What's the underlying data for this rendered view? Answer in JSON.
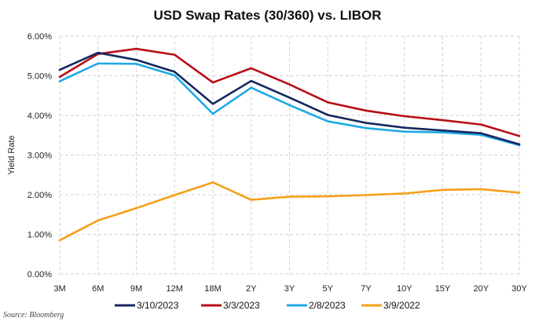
{
  "title": "USD Swap Rates (30/360) vs. LIBOR",
  "source": "Source: Bloomberg",
  "colors": {
    "3/10/2023": "#14285f",
    "3/3/2023": "#b80f16",
    "2/8/2023": "#1fa9e6",
    "3/9/2022": "#f5a01a",
    "grid": "#d3d3d3"
  },
  "chart_data": {
    "type": "line",
    "title": "USD Swap Rates (30/360) vs. LIBOR",
    "xlabel": "",
    "ylabel": "Yield Rate",
    "categories": [
      "3M",
      "6M",
      "9M",
      "12M",
      "18M",
      "2Y",
      "3Y",
      "5Y",
      "7Y",
      "10Y",
      "15Y",
      "20Y",
      "30Y"
    ],
    "ylim": [
      0,
      6
    ],
    "yticks": [
      "0.00%",
      "1.00%",
      "2.00%",
      "3.00%",
      "4.00%",
      "5.00%",
      "6.00%"
    ],
    "grid": true,
    "legend_position": "bottom",
    "series": [
      {
        "name": "3/10/2023",
        "values": [
          5.15,
          5.58,
          5.4,
          5.1,
          4.29,
          4.87,
          4.45,
          4.01,
          3.81,
          3.69,
          3.62,
          3.55,
          3.27
        ]
      },
      {
        "name": "3/3/2023",
        "values": [
          4.97,
          5.55,
          5.68,
          5.53,
          4.83,
          5.19,
          4.78,
          4.33,
          4.12,
          3.98,
          3.88,
          3.77,
          3.48
        ]
      },
      {
        "name": "2/8/2023",
        "values": [
          4.86,
          5.31,
          5.3,
          5.01,
          4.04,
          4.7,
          4.26,
          3.85,
          3.68,
          3.59,
          3.57,
          3.51,
          3.25
        ]
      },
      {
        "name": "3/9/2022",
        "values": [
          0.85,
          1.35,
          1.66,
          1.99,
          2.31,
          1.87,
          1.95,
          1.96,
          1.99,
          2.03,
          2.12,
          2.14,
          2.05
        ]
      }
    ]
  }
}
